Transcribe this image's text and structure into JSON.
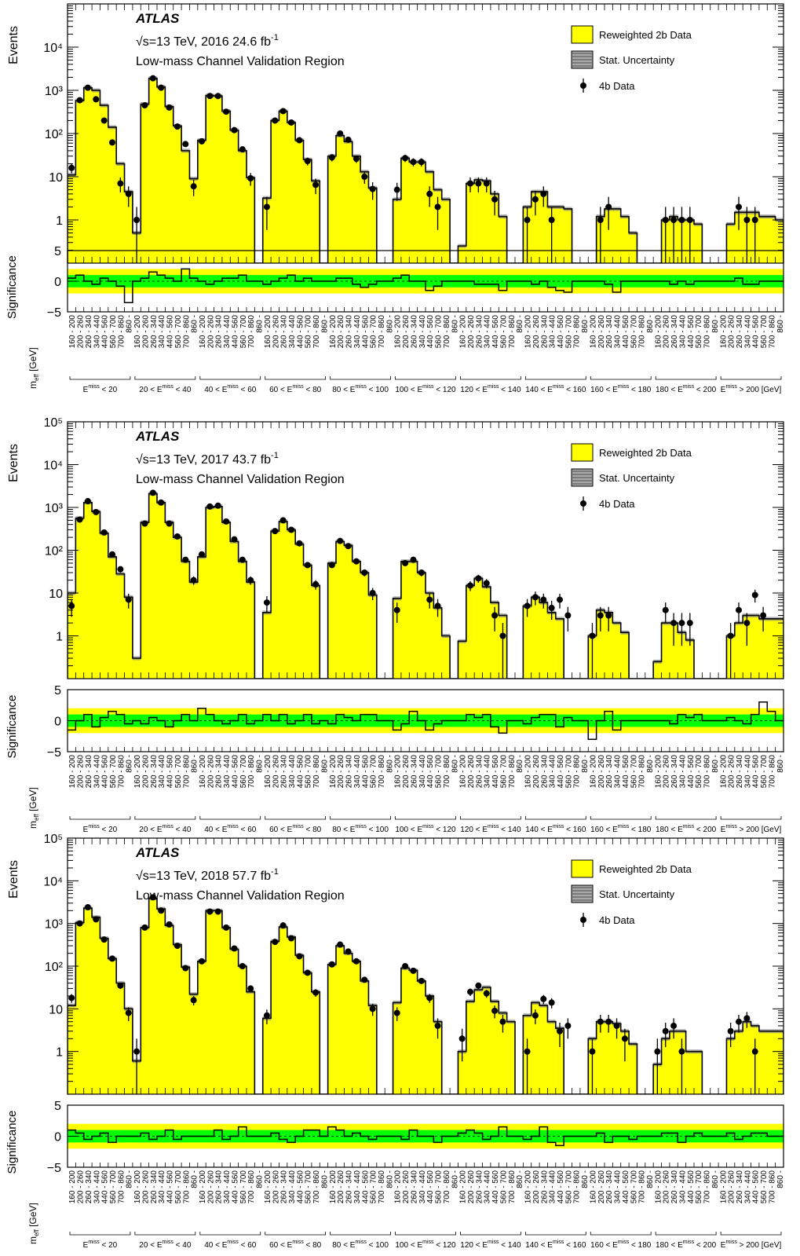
{
  "colors": {
    "mc_fill": "#ffff00",
    "band_2sigma": "#ffff00",
    "band_1sigma": "#00ff00",
    "data_marker": "#000000",
    "frame": "#000000"
  },
  "shared": {
    "bin_labels": [
      "160 - 200",
      "200 - 260",
      "260 - 340",
      "340 - 440",
      "440 - 560",
      "560 - 700",
      "700 - 860",
      "860 -"
    ],
    "group_labels": [
      {
        "pre": "",
        "post": " < 20"
      },
      {
        "pre": "20 < ",
        "post": " < 40"
      },
      {
        "pre": "40 < ",
        "post": " < 60"
      },
      {
        "pre": "60 < ",
        "post": " < 80"
      },
      {
        "pre": "80 < ",
        "post": " < 100"
      },
      {
        "pre": "100 < ",
        "post": " < 120"
      },
      {
        "pre": "120 < ",
        "post": " < 140"
      },
      {
        "pre": "140 < ",
        "post": " < 160"
      },
      {
        "pre": "160 < ",
        "post": " < 180"
      },
      {
        "pre": "180 < ",
        "post": " < 200"
      },
      {
        "pre": "",
        "post": " > 200 [GeV]"
      }
    ],
    "met_symbol": "E",
    "met_sub": "T",
    "met_sup": "miss",
    "ylabel_top": "Events",
    "ylabel_bottom": "Significance",
    "xlabel_main": "m",
    "xlabel_sub": "eff",
    "xlabel_unit": " [GeV]",
    "atlas": "ATLAS",
    "sqrt_s": "√s=13 TeV,",
    "region": "Low-mass Channel Validation Region",
    "legend": [
      "Reweighted 2b Data",
      "Stat. Uncertainty",
      "4b Data"
    ],
    "lumi_sup": "-1"
  },
  "chart_data": [
    {
      "type": "bar",
      "panel": "2016",
      "year_lumi": "2016 24.6 fb",
      "yscale": "log",
      "ylim": [
        0.1,
        100000
      ],
      "yticks": [
        "1",
        "10",
        "10²",
        "10³",
        "10⁴"
      ],
      "sig_ylim": [
        -5,
        5
      ],
      "sig_ticks": [
        "5",
        "0",
        "−5"
      ],
      "series": [
        {
          "name": "Reweighted 2b Data",
          "values": [
            11,
            580,
            1150,
            1000,
            450,
            140,
            20,
            4.5,
            0.5,
            480,
            1900,
            1200,
            420,
            150,
            40,
            9,
            70,
            760,
            740,
            330,
            120,
            40,
            9.5,
            0.1,
            3.2,
            200,
            330,
            180,
            70,
            25,
            8,
            0.1,
            30,
            90,
            65,
            30,
            13,
            5.5,
            0.1,
            0.1,
            3,
            27,
            22,
            22,
            13,
            5,
            3,
            0.1,
            0.25,
            7,
            8.5,
            8,
            4,
            1.2,
            0.1,
            0.1,
            2,
            4.5,
            4.5,
            2,
            2,
            1.8,
            0.1,
            0.1,
            0.1,
            1.2,
            1.8,
            1.8,
            1.2,
            0.5,
            0.1,
            0.1,
            0.1,
            1,
            1.2,
            1,
            1,
            0.8,
            0.1,
            0.1,
            0.1,
            0.8,
            1.5,
            1.5,
            1.5,
            1.2,
            1.2,
            1
          ]
        },
        {
          "name": "4b Data",
          "values": [
            16,
            590,
            1150,
            620,
            200,
            62,
            7,
            4,
            1,
            450,
            1900,
            1150,
            400,
            145,
            57,
            6,
            66,
            740,
            740,
            320,
            120,
            43,
            9.2,
            null,
            2,
            200,
            330,
            180,
            70,
            23,
            6.5,
            null,
            28,
            100,
            72,
            26,
            10,
            5.2,
            null,
            null,
            5,
            27,
            22,
            22,
            4,
            2,
            null,
            null,
            null,
            7,
            7,
            7,
            3,
            null,
            null,
            null,
            1,
            3,
            4,
            1,
            null,
            null,
            null,
            null,
            null,
            1,
            2,
            null,
            null,
            null,
            null,
            null,
            null,
            1,
            1,
            1,
            1,
            null,
            null,
            null,
            null,
            null,
            2,
            1,
            1,
            null,
            null,
            null
          ]
        }
      ],
      "significance": [
        0.5,
        1,
        0,
        -0.5,
        0.5,
        0,
        -0.8,
        -3.5,
        0,
        0.5,
        1.5,
        1,
        0.5,
        0,
        2,
        0.5,
        0,
        -0.5,
        0,
        0.5,
        0.5,
        1,
        0,
        0,
        -0.5,
        0,
        0.5,
        1,
        0,
        0.5,
        0,
        0,
        0,
        0.5,
        0.5,
        -0.5,
        -1,
        -0.5,
        0,
        0,
        0.5,
        1,
        0,
        0,
        -1.5,
        -0.8,
        0,
        0,
        0,
        0,
        -0.5,
        -0.5,
        -0.5,
        -1.5,
        0,
        0,
        0,
        -0.5,
        0,
        -1,
        -1.5,
        -1.8,
        0,
        0,
        0,
        0,
        -0.5,
        -1.8,
        0,
        0,
        0,
        0,
        0,
        0,
        -0.5,
        0,
        -0.5,
        0,
        0,
        0,
        0,
        0,
        0.5,
        -0.5,
        -0.5,
        0,
        0,
        0
      ]
    },
    {
      "type": "bar",
      "panel": "2017",
      "year_lumi": "2017 43.7 fb",
      "yscale": "log",
      "ylim": [
        0.1,
        100000
      ],
      "yticks": [
        "1",
        "10",
        "10²",
        "10³",
        "10⁴",
        "10⁵"
      ],
      "sig_ylim": [
        -5,
        5
      ],
      "sig_ticks": [
        "5",
        "0",
        "−5"
      ],
      "series": [
        {
          "name": "Reweighted 2b Data",
          "values": [
            10,
            560,
            1300,
            800,
            250,
            70,
            28,
            8,
            0.3,
            450,
            2100,
            1300,
            450,
            200,
            55,
            18,
            70,
            1000,
            1050,
            450,
            160,
            55,
            18,
            0.1,
            3.5,
            280,
            470,
            300,
            140,
            45,
            15,
            0.1,
            50,
            160,
            130,
            55,
            30,
            9,
            0.1,
            0.1,
            7.5,
            55,
            55,
            30,
            10,
            4.5,
            1,
            0.1,
            0.75,
            15,
            22,
            14,
            6,
            3,
            0.1,
            0.1,
            5,
            8,
            6,
            3.5,
            2.5,
            0.1,
            0.1,
            0.1,
            1,
            4,
            3.5,
            2,
            1.2,
            0.1,
            0.1,
            0.1,
            0.25,
            2,
            2,
            1.2,
            0.8,
            0.1,
            0.1,
            0.1,
            0.1,
            1,
            2,
            3,
            3,
            2.5,
            2.5,
            2.5
          ]
        },
        {
          "name": "4b Data",
          "values": [
            5,
            520,
            1400,
            780,
            260,
            80,
            36,
            7,
            null,
            420,
            2200,
            1300,
            420,
            210,
            60,
            20,
            80,
            1050,
            1100,
            470,
            180,
            60,
            20,
            null,
            6,
            280,
            500,
            300,
            145,
            45,
            16,
            null,
            45,
            165,
            125,
            55,
            30,
            10,
            null,
            null,
            4,
            50,
            60,
            30,
            7,
            5,
            null,
            null,
            null,
            15,
            22,
            17,
            3,
            1,
            null,
            null,
            5,
            8,
            7,
            4.5,
            7,
            3,
            null,
            null,
            1,
            3,
            3,
            null,
            null,
            null,
            null,
            null,
            null,
            4,
            2,
            2,
            2,
            null,
            null,
            null,
            null,
            1,
            4,
            2,
            9,
            3,
            null,
            null
          ]
        }
      ],
      "significance": [
        -1.5,
        0,
        1,
        -1,
        0.5,
        1.5,
        1,
        -0.5,
        0,
        -0.5,
        0.5,
        0,
        -1,
        0,
        1,
        0,
        2,
        1,
        0,
        -0.5,
        0,
        1,
        -0.5,
        0,
        1,
        0,
        1,
        -0.5,
        0,
        1,
        -0.5,
        0,
        -0.5,
        1,
        0.5,
        0,
        1,
        1,
        0,
        0,
        -1.5,
        -0.5,
        1.5,
        0,
        -1.5,
        -0.5,
        0,
        0,
        0,
        1,
        0.5,
        1,
        -1,
        -2,
        0,
        0,
        -0.5,
        0.5,
        1,
        1,
        -1,
        0.5,
        0,
        0,
        -3,
        0,
        1.5,
        -1.5,
        0,
        0,
        0,
        0,
        0,
        0,
        -0.5,
        1,
        0.5,
        1,
        0,
        0,
        0,
        0.5,
        0,
        -0.5,
        1,
        3,
        1.5,
        0
      ]
    },
    {
      "type": "bar",
      "panel": "2018",
      "year_lumi": "2018 57.7 fb",
      "yscale": "log",
      "ylim": [
        0.1,
        100000
      ],
      "yticks": [
        "1",
        "10",
        "10²",
        "10³",
        "10⁴",
        "10⁵"
      ],
      "sig_ylim": [
        -5,
        5
      ],
      "sig_ticks": [
        "5",
        "0",
        "−5"
      ],
      "series": [
        {
          "name": "Reweighted 2b Data",
          "values": [
            12,
            1050,
            2300,
            1400,
            450,
            150,
            40,
            10,
            0.6,
            800,
            3900,
            2200,
            900,
            320,
            95,
            22,
            130,
            2000,
            2000,
            800,
            250,
            100,
            25,
            0.1,
            6,
            380,
            830,
            480,
            180,
            70,
            25,
            0.1,
            110,
            300,
            200,
            130,
            45,
            12,
            0.1,
            0.1,
            14,
            90,
            80,
            45,
            20,
            5,
            0.1,
            0.1,
            1,
            15,
            28,
            32,
            15,
            8,
            5,
            0.1,
            7,
            14,
            12,
            5,
            3.5,
            0.1,
            0.1,
            0.1,
            2,
            5,
            5,
            4.5,
            3,
            1.5,
            0.1,
            0.1,
            0.5,
            2,
            3,
            3,
            1,
            1,
            0.1,
            0.1,
            0.1,
            2,
            3,
            5,
            4,
            3,
            3,
            3
          ]
        },
        {
          "name": "4b Data",
          "values": [
            18,
            1000,
            2400,
            1250,
            420,
            150,
            35,
            8,
            1,
            800,
            4100,
            2000,
            950,
            300,
            90,
            16,
            130,
            1900,
            1900,
            800,
            260,
            100,
            30,
            null,
            7,
            370,
            900,
            450,
            170,
            70,
            24,
            null,
            110,
            320,
            220,
            130,
            48,
            10,
            null,
            null,
            8,
            100,
            78,
            45,
            18,
            4,
            null,
            null,
            2,
            25,
            35,
            23,
            9,
            5,
            null,
            null,
            1,
            7,
            17,
            14,
            3,
            4,
            null,
            null,
            1,
            5,
            5,
            4,
            2,
            null,
            null,
            null,
            1,
            3,
            4,
            1,
            null,
            null,
            null,
            null,
            null,
            3,
            5,
            6,
            1,
            null,
            null,
            null
          ]
        }
      ],
      "significance": [
        1,
        0.5,
        -0.5,
        0,
        0.5,
        -1,
        0,
        0,
        0,
        0.5,
        -0.5,
        0,
        1,
        -0.5,
        0,
        0,
        0,
        0,
        1,
        -0.5,
        0,
        1.5,
        0,
        0,
        0,
        0.5,
        -0.5,
        -1,
        0,
        1,
        1,
        0,
        1.5,
        1,
        0,
        0.5,
        0,
        -0.5,
        0,
        0,
        0,
        -0.5,
        1,
        0,
        0,
        -1,
        0,
        0,
        0.5,
        1,
        0.5,
        -0.5,
        0,
        1.5,
        0,
        0,
        -0.5,
        0,
        1.5,
        -1,
        -1.5,
        0,
        0,
        0,
        0,
        0.5,
        -1,
        0,
        0,
        -0.5,
        0,
        0,
        0,
        0.5,
        0.5,
        -1,
        0,
        0.5,
        0,
        0,
        0,
        0.5,
        -0.5,
        0,
        0.5,
        0.5,
        0,
        0
      ]
    }
  ]
}
